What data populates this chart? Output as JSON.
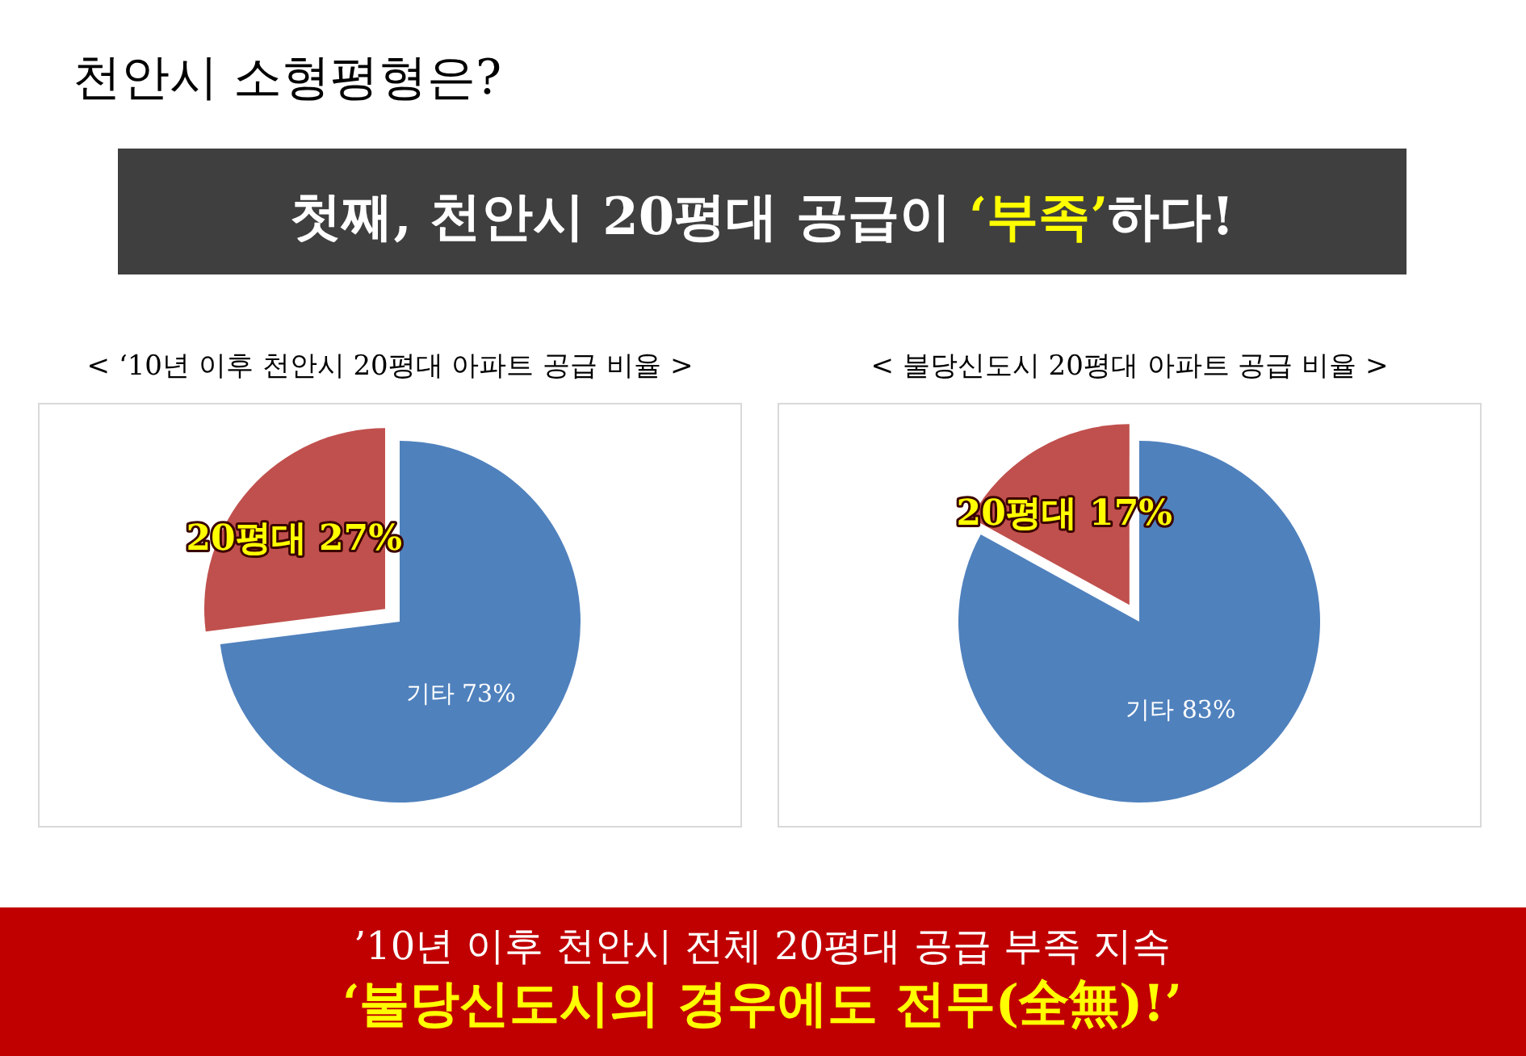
{
  "chart_data": [
    {
      "type": "other",
      "title": "천안시 소형평형은?",
      "subtitle": "첫째, 천안시 20평대 공급이 **‘부족’**하다!"
    },
    {
      "type": "pie",
      "title": "< ‘10년 이후 천안시 20평대 아파트 공급 비율 >",
      "categories": [
        "기타",
        "20평대"
      ],
      "values": [
        73,
        27
      ],
      "value_labels": [
        "73%",
        "27%"
      ],
      "colors": [
        "#4f81bd",
        "#c0504d"
      ]
    },
    {
      "type": "pie",
      "title": "< 불당신도시 20평대 아파트 공급 비율 >",
      "categories": [
        "기타",
        "20평대"
      ],
      "values": [
        83,
        17
      ],
      "value_labels": [
        "83%",
        "17%"
      ],
      "colors": [
        "#4f81bd",
        "#c0504d"
      ]
    },
    {
      "type": "other",
      "annotations": [
        "’10년 이후 천안시 전체 20평대 공급 부족 지속",
        "‘불당신도시의 경우에도 전무(全無)!’"
      ]
    }
  ]
}
